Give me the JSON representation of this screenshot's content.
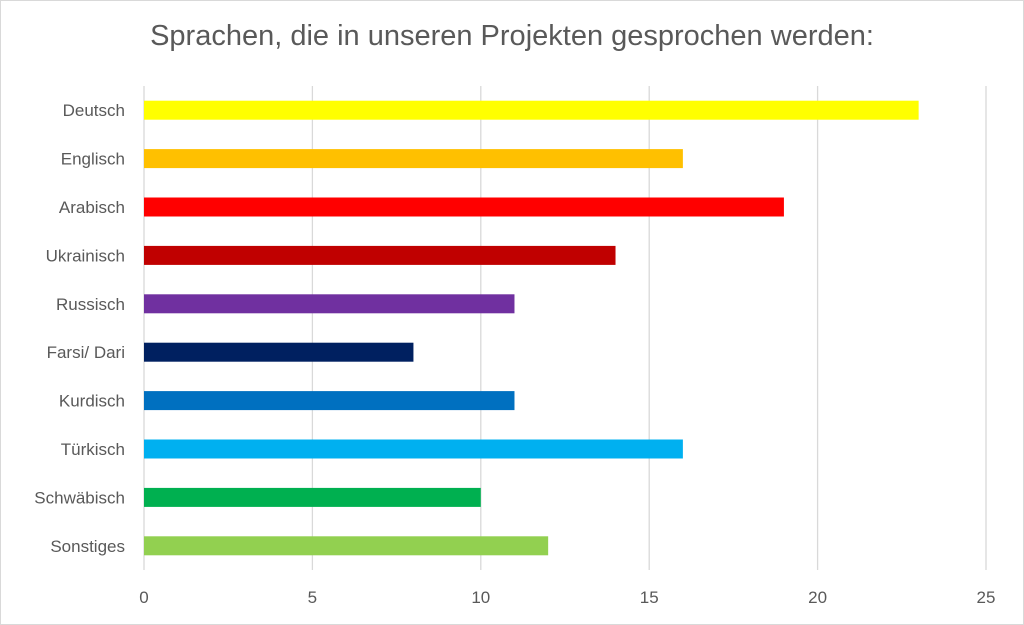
{
  "chart_data": {
    "type": "bar",
    "orientation": "horizontal",
    "title": "Sprachen, die in unseren Projekten gesprochen werden:",
    "xlabel": "",
    "ylabel": "",
    "categories": [
      "Deutsch",
      "Englisch",
      "Arabisch",
      "Ukrainisch",
      "Russisch",
      "Farsi/ Dari",
      "Kurdisch",
      "Türkisch",
      "Schwäbisch",
      "Sonstiges"
    ],
    "values": [
      23,
      16,
      19,
      14,
      11,
      8,
      11,
      16,
      10,
      12
    ],
    "colors": [
      "#ffff00",
      "#ffc000",
      "#ff0000",
      "#c00000",
      "#7030a0",
      "#002060",
      "#0070c0",
      "#00b0f0",
      "#00b050",
      "#92d050"
    ],
    "xlim": [
      0,
      25
    ],
    "xticks": [
      "0",
      "5",
      "10",
      "15",
      "20",
      "25"
    ],
    "grid": true,
    "legend": "none"
  }
}
